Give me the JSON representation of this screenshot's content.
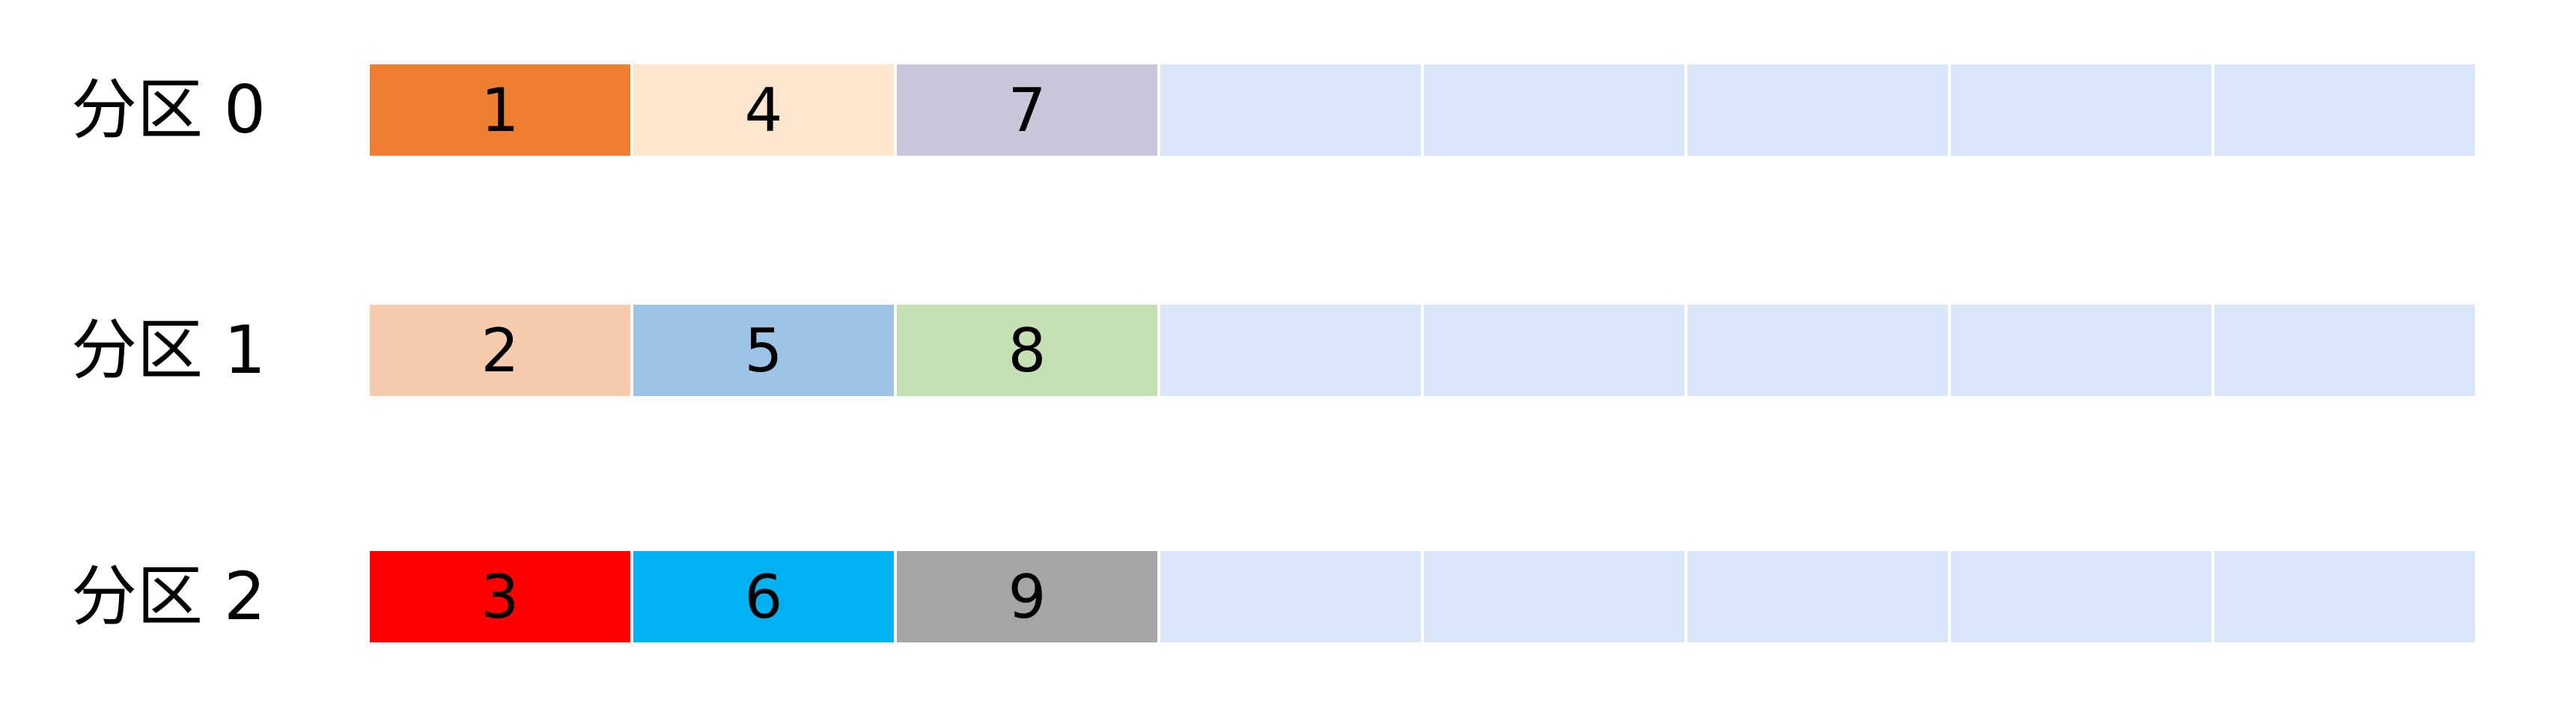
{
  "partitions": [
    {
      "label": "分区 0",
      "cells": [
        {
          "value": "1",
          "color": "#ED7D31"
        },
        {
          "value": "4",
          "color": "#FFE6CE"
        },
        {
          "value": "7",
          "color": "#C8C6D8"
        },
        {
          "value": "",
          "color": "#DAE7F8"
        },
        {
          "value": "",
          "color": "#DAE7F8"
        },
        {
          "value": "",
          "color": "#DAE7F8"
        },
        {
          "value": "",
          "color": "#DAE7F8"
        },
        {
          "value": "",
          "color": "#DAE7F8"
        }
      ]
    },
    {
      "label": "分区 1",
      "cells": [
        {
          "value": "2",
          "color": "#F7CBAD"
        },
        {
          "value": "5",
          "color": "#9DC3E6"
        },
        {
          "value": "8",
          "color": "#C5E0B4"
        },
        {
          "value": "",
          "color": "#DAE7F8"
        },
        {
          "value": "",
          "color": "#DAE7F8"
        },
        {
          "value": "",
          "color": "#DAE7F8"
        },
        {
          "value": "",
          "color": "#DAE7F8"
        },
        {
          "value": "",
          "color": "#DAE7F8"
        }
      ]
    },
    {
      "label": "分区 2",
      "cells": [
        {
          "value": "3",
          "color": "#FF0000"
        },
        {
          "value": "6",
          "color": "#00B0F0"
        },
        {
          "value": "9",
          "color": "#A5A5A5"
        },
        {
          "value": "",
          "color": "#DAE7F8"
        },
        {
          "value": "",
          "color": "#DAE7F8"
        },
        {
          "value": "",
          "color": "#DAE7F8"
        },
        {
          "value": "",
          "color": "#DAE7F8"
        },
        {
          "value": "",
          "color": "#DAE7F8"
        }
      ]
    }
  ]
}
